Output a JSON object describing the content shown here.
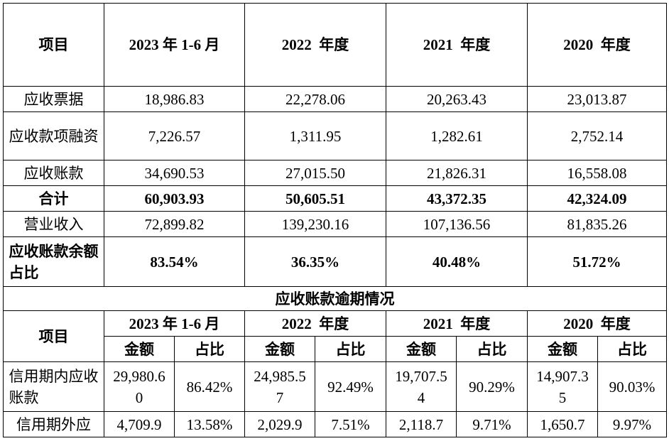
{
  "summary": {
    "header": [
      "项目",
      "2023 年 1-6 月",
      "2022  年度",
      "2021  年度",
      "2020  年度"
    ],
    "rows": [
      {
        "label": "应收票据",
        "values": [
          "18,986.83",
          "22,278.06",
          "20,263.43",
          "23,013.87"
        ]
      },
      {
        "label": "应收款项融资",
        "values": [
          "7,226.57",
          "1,311.95",
          "1,282.61",
          "2,752.14"
        ]
      },
      {
        "label": "应收账款",
        "values": [
          "34,690.53",
          "27,015.50",
          "21,826.31",
          "16,558.08"
        ]
      },
      {
        "label": "合计",
        "values": [
          "60,903.93",
          "50,605.51",
          "43,372.35",
          "42,324.09"
        ]
      },
      {
        "label": "营业收入",
        "values": [
          "72,899.82",
          "139,230.16",
          "107,136.56",
          "81,835.26"
        ]
      },
      {
        "label": "应收账款余额占比",
        "values": [
          "83.54%",
          "36.35%",
          "40.48%",
          "51.72%"
        ]
      }
    ]
  },
  "overdue": {
    "title": "应收账款逾期情况",
    "item_label": "项目",
    "periods": [
      "2023 年 1-6 月",
      "2022  年度",
      "2021  年度",
      "2020  年度"
    ],
    "amount_label": "金额",
    "ratio_label": "占比",
    "rows": [
      {
        "label": "信用期内应收账款",
        "cells": [
          "29,980.60",
          "86.42%",
          "24,985.57",
          "92.49%",
          "19,707.54",
          "90.29%",
          "14,907.35",
          "90.03%"
        ]
      },
      {
        "label": "信用期外应",
        "cells": [
          "4,709.9",
          "13.58%",
          "2,029.9",
          "7.51%",
          "2,118.7",
          "9.71%",
          "1,650.7",
          "9.97%"
        ]
      }
    ]
  }
}
